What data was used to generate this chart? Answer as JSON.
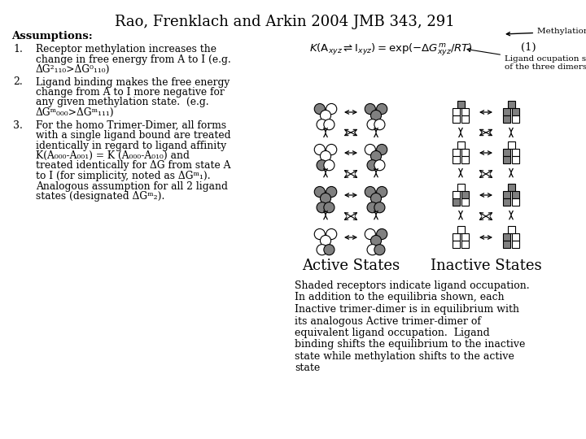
{
  "title": "Rao, Frenklach and Arkin 2004 JMB 343, 291",
  "methylation_state_label": "Methylation state",
  "assumptions_header": "Assumptions:",
  "assumption1_lines": [
    "Receptor methylation increases the",
    "change in free energy from A to I (e.g.",
    "ΔG²₁₁₀>ΔG⁰₁₁₀)"
  ],
  "assumption2_lines": [
    "Ligand binding makes the free energy",
    "change from A to I more negative for",
    "any given methylation state.  (e.g.",
    "ΔGᵐ₀₀₀>ΔGᵐ₁₁₁)"
  ],
  "assumption3_lines": [
    "For the homo Trimer-Dimer, all forms",
    "with a single ligand bound are treated",
    "identically in regard to ligand affinity",
    "K(A₀₀₀-A₀₀₁) = K (A₀₀₀-A₀₁₀) and",
    "treated identically for ΔG from state A",
    "to I (for simplicity, noted as ΔGᵐ₁).",
    "Analogous assumption for all 2 ligand",
    "states (designated ΔGᵐ₂)."
  ],
  "ligand_label1": "Ligand ocupation state",
  "ligand_label2": "of the three dimers",
  "active_states": "Active States",
  "inactive_states": "Inactive States",
  "bottom_text_lines": [
    "Shaded receptors indicate ligand occupation.",
    "In addition to the equilibria shown, each",
    "Inactive trimer-dimer is in equilibrium with",
    "its analogous Active trimer-dimer of",
    "equivalent ligand occupation.  Ligand",
    "binding shifts the equilibrium to the inactive",
    "state while methylation shifts to the active",
    "state"
  ],
  "bg_color": "#ffffff",
  "text_color": "#000000",
  "active_circle_configs": [
    [
      [
        true,
        false,
        false
      ],
      [
        false,
        false
      ]
    ],
    [
      [
        true,
        true,
        true
      ],
      [
        false,
        false
      ]
    ],
    [
      [
        false,
        false,
        false
      ],
      [
        true,
        false
      ]
    ],
    [
      [
        false,
        true,
        false
      ],
      [
        true,
        false
      ]
    ],
    [
      [
        true,
        false,
        false
      ],
      [
        true,
        true
      ]
    ],
    [
      [
        true,
        true,
        true
      ],
      [
        true,
        true
      ]
    ],
    [
      [
        false,
        false,
        false
      ],
      [
        true,
        false
      ]
    ],
    [
      [
        false,
        true,
        true
      ],
      [
        true,
        false
      ]
    ]
  ],
  "inactive_sq_configs": [
    [
      [
        true,
        false
      ],
      [
        false
      ]
    ],
    [
      [
        true,
        true
      ],
      [
        true
      ]
    ],
    [
      [
        false,
        false
      ],
      [
        true
      ]
    ],
    [
      [
        true,
        false
      ],
      [
        true
      ]
    ],
    [
      [
        false,
        true
      ],
      [
        true
      ]
    ],
    [
      [
        true,
        true
      ],
      [
        true
      ]
    ],
    [
      [
        false,
        false
      ],
      [
        true
      ]
    ],
    [
      [
        true,
        false
      ],
      [
        true
      ]
    ]
  ]
}
